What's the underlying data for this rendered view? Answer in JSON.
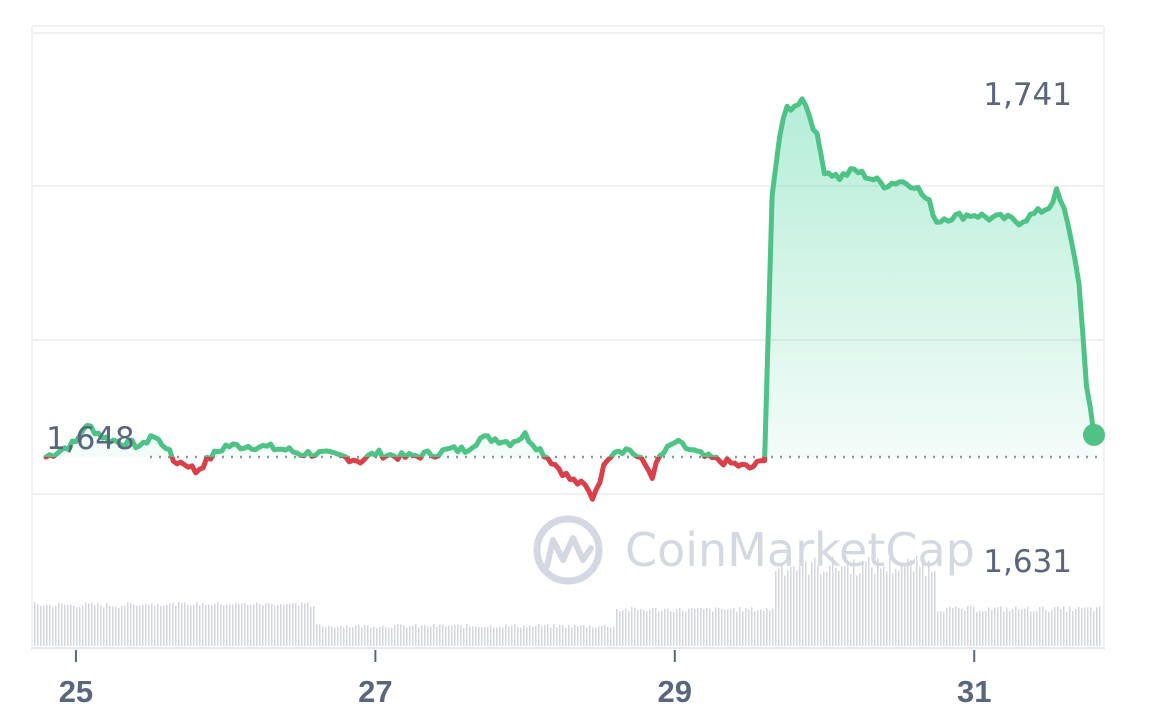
{
  "colors": {
    "up": "#16c784",
    "up_line": "#4fc286",
    "down": "#d9404a",
    "grid": "#eef0f3",
    "baseline_dots": "#8c95a6",
    "volume": "#d3d6dc",
    "watermark": "#d4d8e2"
  },
  "watermark": {
    "brand": "CoinMarketCap",
    "icon": "coinmarketcap-logo-icon"
  },
  "chart_data": {
    "type": "line",
    "title": "",
    "xlabel": "",
    "ylabel": "",
    "x_ticks": [
      "25",
      "27",
      "29",
      "31"
    ],
    "y_labels": {
      "high": "1,741",
      "reference": "1,648",
      "low": "1,631"
    },
    "reference_value": 1648,
    "ylim": [
      1620,
      1760
    ],
    "x_range_days": [
      24.8,
      31.8
    ],
    "grid": "horizontal",
    "series": [
      {
        "x": [
          24.8,
          25.0,
          25.05,
          25.1,
          25.2,
          25.3,
          25.45,
          25.5,
          25.6,
          25.65,
          25.75,
          25.8,
          25.9,
          26.0,
          26.2,
          26.4,
          26.5,
          26.6,
          26.8,
          26.9,
          27.0,
          27.2,
          27.4,
          27.5,
          27.6,
          27.7,
          27.8,
          27.9,
          28.0,
          28.1,
          28.2,
          28.3,
          28.4,
          28.45,
          28.5,
          28.55,
          28.6,
          28.7,
          28.8,
          28.85,
          28.9,
          29.0,
          29.1,
          29.2,
          29.3,
          29.4,
          29.5,
          29.6,
          29.65,
          29.7,
          29.75,
          29.8,
          29.85,
          29.9,
          29.95,
          30.0,
          30.1,
          30.2,
          30.3,
          30.4,
          30.5,
          30.6,
          30.7,
          30.75,
          30.8,
          31.0,
          31.1,
          31.2,
          31.3,
          31.4,
          31.5,
          31.55,
          31.6,
          31.65,
          31.7,
          31.75,
          31.8
        ],
        "y": [
          1648,
          1652,
          1656,
          1656,
          1653,
          1652,
          1651,
          1654,
          1651,
          1647,
          1646,
          1644,
          1648,
          1651,
          1651,
          1650,
          1649,
          1649,
          1648,
          1647,
          1649,
          1648,
          1649,
          1650,
          1650,
          1653,
          1653,
          1652,
          1654,
          1650,
          1646,
          1642,
          1640,
          1637,
          1642,
          1648,
          1650,
          1650,
          1646,
          1643,
          1648,
          1652,
          1650,
          1648,
          1647,
          1646,
          1645,
          1647,
          1720,
          1735,
          1743,
          1743,
          1746,
          1741,
          1735,
          1726,
          1724,
          1726,
          1724,
          1722,
          1723,
          1722,
          1717,
          1712,
          1713,
          1714,
          1713,
          1713,
          1712,
          1714,
          1716,
          1720,
          1715,
          1707,
          1695,
          1668,
          1654
        ]
      }
    ],
    "volume": "low and flat, rising sharply near day 29.7, high through day 30.7, then falling back"
  }
}
